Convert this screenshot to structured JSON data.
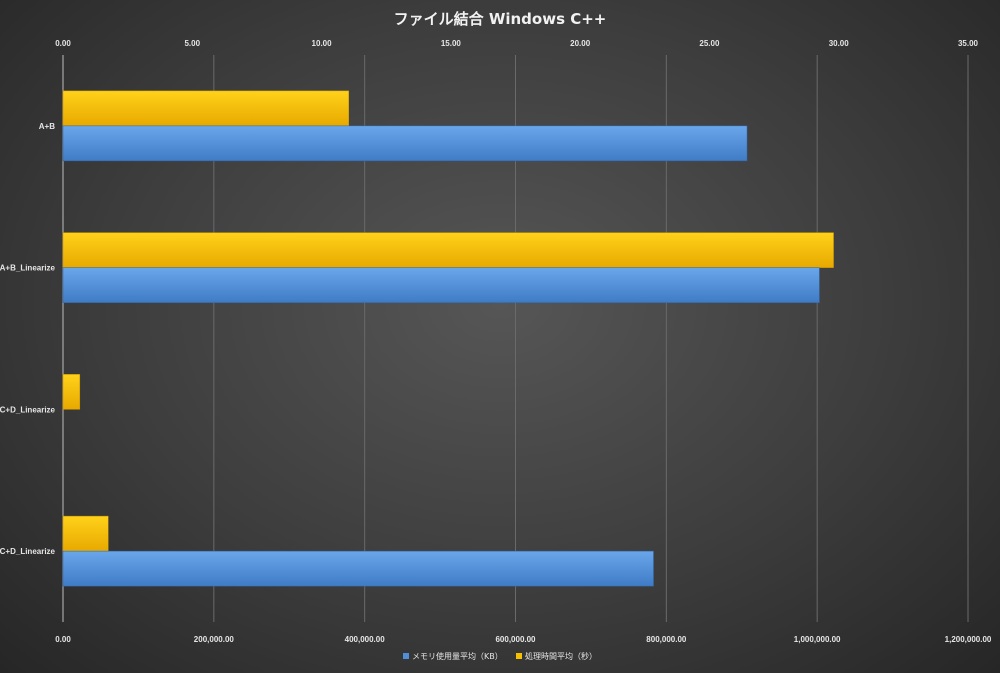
{
  "chart_data": {
    "type": "bar",
    "orientation": "horizontal",
    "title": "ファイル結合 Windows C++",
    "categories": [
      "A+B",
      "A+B_Linearize",
      "C+D_Linearize",
      "C+D_Linearize"
    ],
    "series": [
      {
        "name": "メモリ使用量平均（KB）",
        "axis": "bottom",
        "color": "#4f8fd8",
        "values": [
          907000,
          1003000,
          0,
          783000
        ]
      },
      {
        "name": "処理時間平均（秒）",
        "axis": "top",
        "color": "#f5c000",
        "values": [
          11.05,
          29.8,
          0.65,
          1.75
        ]
      }
    ],
    "top_axis": {
      "lim": [
        0,
        35
      ],
      "ticks": [
        "0.00",
        "5.00",
        "10.00",
        "15.00",
        "20.00",
        "25.00",
        "30.00",
        "35.00"
      ]
    },
    "bottom_axis": {
      "lim": [
        0,
        1200000
      ],
      "ticks": [
        "0.00",
        "200,000.00",
        "400,000.00",
        "600,000.00",
        "800,000.00",
        "1,000,000.00",
        "1,200,000.00"
      ]
    },
    "grid": true,
    "legend": "bottom"
  }
}
